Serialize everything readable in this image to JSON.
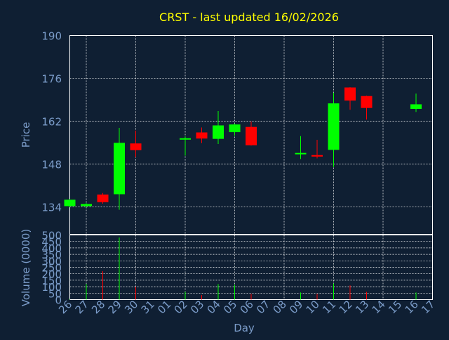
{
  "chart_data": [
    {
      "type": "candlestick",
      "title": "CRST - last updated 16/02/2026",
      "xlabel": "",
      "ylabel": "Price",
      "ylim": [
        125,
        190
      ],
      "yticks": [
        134,
        148,
        162,
        176,
        190
      ],
      "grid": true,
      "x_tick_labels": [
        "26",
        "27",
        "28",
        "29",
        "30",
        "31",
        "01",
        "02",
        "03",
        "04",
        "05",
        "06",
        "07",
        "08",
        "09",
        "10",
        "11",
        "12",
        "13",
        "14",
        "15",
        "16",
        "17"
      ],
      "candles": [
        {
          "x": "26",
          "open": 134.2,
          "high": 136.5,
          "low": 133.8,
          "close": 136.3
        },
        {
          "x": "27",
          "open": 134.2,
          "high": 135.2,
          "low": 133.8,
          "close": 134.9
        },
        {
          "x": "28",
          "open": 138.0,
          "high": 138.5,
          "low": 135.0,
          "close": 135.5
        },
        {
          "x": "29",
          "open": 138.1,
          "high": 159.8,
          "low": 133.0,
          "close": 154.9
        },
        {
          "x": "30",
          "open": 154.7,
          "high": 158.9,
          "low": 150.2,
          "close": 152.5
        },
        {
          "x": "02",
          "open": 156.0,
          "high": 157.0,
          "low": 150.7,
          "close": 156.4
        },
        {
          "x": "03",
          "open": 158.3,
          "high": 159.9,
          "low": 154.8,
          "close": 156.3
        },
        {
          "x": "04",
          "open": 156.2,
          "high": 165.3,
          "low": 154.5,
          "close": 160.6
        },
        {
          "x": "05",
          "open": 158.4,
          "high": 161.2,
          "low": 157.2,
          "close": 160.9
        },
        {
          "x": "06",
          "open": 160.1,
          "high": 161.9,
          "low": 154.0,
          "close": 154.1
        },
        {
          "x": "09",
          "open": 151.3,
          "high": 157.1,
          "low": 149.6,
          "close": 151.6
        },
        {
          "x": "10",
          "open": 150.9,
          "high": 155.9,
          "low": 149.8,
          "close": 150.4
        },
        {
          "x": "11",
          "open": 152.6,
          "high": 171.3,
          "low": 147.0,
          "close": 167.8
        },
        {
          "x": "12",
          "open": 173.0,
          "high": 173.1,
          "low": 165.7,
          "close": 168.7
        },
        {
          "x": "13",
          "open": 170.2,
          "high": 170.3,
          "low": 162.5,
          "close": 166.3
        },
        {
          "x": "16",
          "open": 166.0,
          "high": 171.0,
          "low": 165.0,
          "close": 167.5
        }
      ],
      "colors": {
        "up": "#00ff00",
        "down": "#ff0000",
        "title": "#ffff00",
        "text": "#7b9cc9",
        "grid": "#ffffff"
      }
    },
    {
      "type": "bar",
      "xlabel": "Day",
      "ylabel": "Volume (0000)",
      "ylim": [
        0,
        500
      ],
      "yticks": [
        0,
        50,
        100,
        150,
        200,
        250,
        300,
        350,
        400,
        450,
        500
      ],
      "grid": true,
      "x_tick_labels": [
        "26",
        "27",
        "28",
        "29",
        "30",
        "31",
        "01",
        "02",
        "03",
        "04",
        "05",
        "06",
        "07",
        "08",
        "09",
        "10",
        "11",
        "12",
        "13",
        "14",
        "15",
        "16",
        "17"
      ],
      "bars": [
        {
          "x": "26",
          "value": 5,
          "direction": "up"
        },
        {
          "x": "27",
          "value": 120,
          "direction": "up"
        },
        {
          "x": "28",
          "value": 220,
          "direction": "down"
        },
        {
          "x": "29",
          "value": 480,
          "direction": "up"
        },
        {
          "x": "30",
          "value": 100,
          "direction": "down"
        },
        {
          "x": "02",
          "value": 60,
          "direction": "up"
        },
        {
          "x": "03",
          "value": 35,
          "direction": "down"
        },
        {
          "x": "04",
          "value": 120,
          "direction": "up"
        },
        {
          "x": "05",
          "value": 115,
          "direction": "up"
        },
        {
          "x": "06",
          "value": 45,
          "direction": "down"
        },
        {
          "x": "09",
          "value": 55,
          "direction": "up"
        },
        {
          "x": "10",
          "value": 45,
          "direction": "down"
        },
        {
          "x": "11",
          "value": 125,
          "direction": "up"
        },
        {
          "x": "12",
          "value": 110,
          "direction": "down"
        },
        {
          "x": "13",
          "value": 60,
          "direction": "down"
        },
        {
          "x": "16",
          "value": 55,
          "direction": "up"
        }
      ]
    }
  ]
}
